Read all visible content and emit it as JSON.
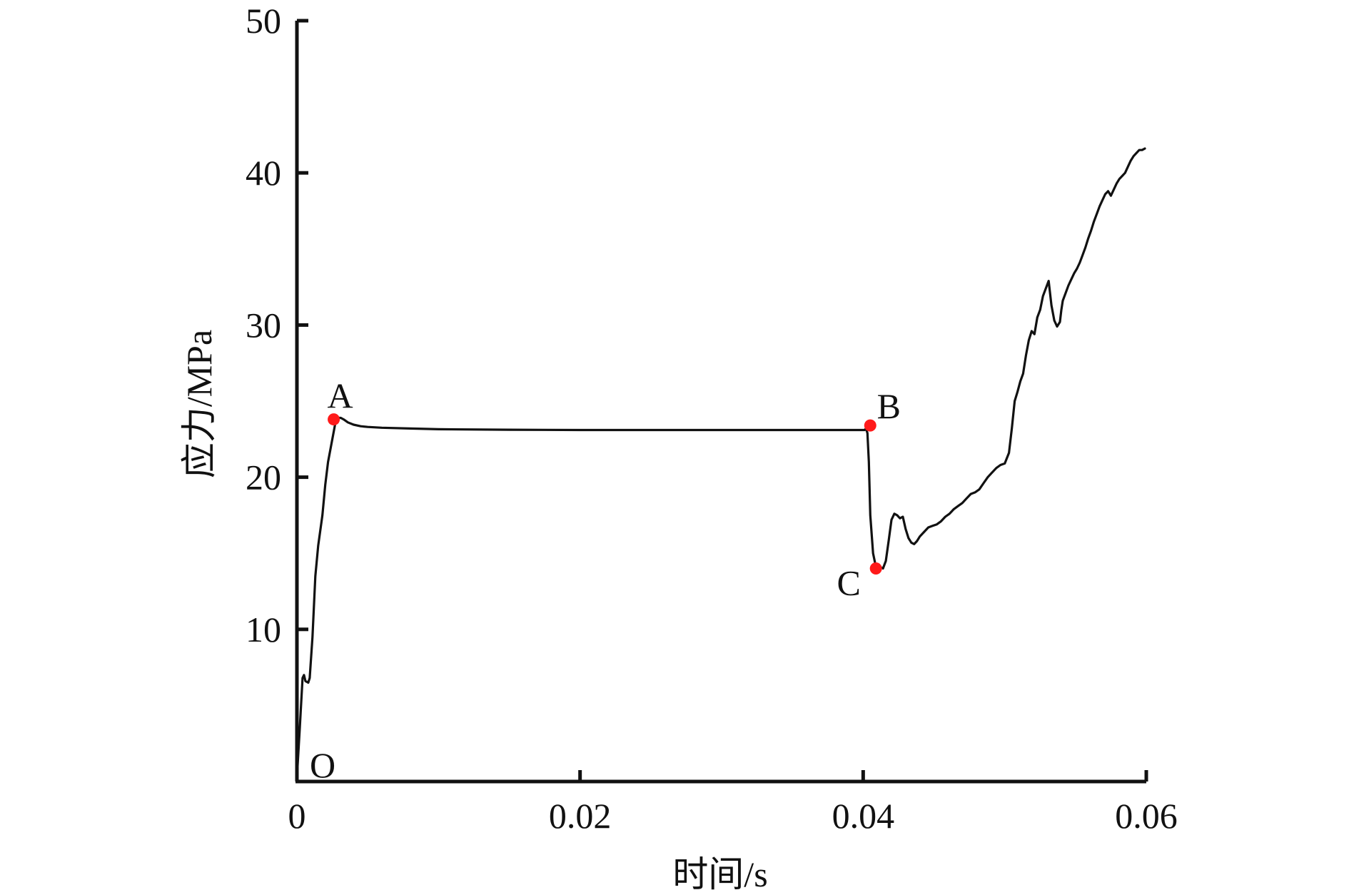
{
  "chart_data": {
    "type": "line",
    "title": "",
    "xlabel": "时间/s",
    "ylabel": "应力/MPa",
    "xlim": [
      0,
      0.06
    ],
    "ylim": [
      0,
      50
    ],
    "x_ticks": [
      0,
      0.02,
      0.04,
      0.06
    ],
    "x_tick_labels": [
      "0",
      "0.02",
      "0.04",
      "0.06"
    ],
    "y_ticks": [
      10,
      20,
      30,
      40,
      50
    ],
    "y_tick_labels": [
      "10",
      "20",
      "30",
      "40",
      "50"
    ],
    "grid": false,
    "legend": "none",
    "line_color": "#111111",
    "marker_color": "#ff1a1a",
    "series": [
      {
        "x": [
          0,
          0.0002,
          0.0004,
          0.0005,
          0.0006,
          0.0008,
          0.0009,
          0.0011,
          0.0013,
          0.0015,
          0.0018,
          0.002,
          0.0022,
          0.0025,
          0.0027,
          0.0028,
          0.0029,
          0.0031,
          0.0033,
          0.0036,
          0.004,
          0.0045,
          0.005,
          0.006,
          0.008,
          0.01,
          0.015,
          0.02,
          0.025,
          0.03,
          0.035,
          0.039,
          0.0401,
          0.0402,
          0.0403,
          0.0404,
          0.0405,
          0.0407,
          0.0409,
          0.041,
          0.0411,
          0.0412,
          0.0414,
          0.0416,
          0.0418,
          0.042,
          0.0422,
          0.0424,
          0.0426,
          0.0428,
          0.043,
          0.0432,
          0.0434,
          0.0436,
          0.0438,
          0.044,
          0.0443,
          0.0446,
          0.0449,
          0.0452,
          0.0455,
          0.0458,
          0.0461,
          0.0464,
          0.0467,
          0.047,
          0.0473,
          0.0476,
          0.0479,
          0.0482,
          0.0485,
          0.0488,
          0.0491,
          0.0494,
          0.0497,
          0.05,
          0.0503,
          0.0505,
          0.0507,
          0.0509,
          0.0511,
          0.0513,
          0.0515,
          0.0517,
          0.0519,
          0.0521,
          0.0523,
          0.0525,
          0.0527,
          0.0529,
          0.0531,
          0.0533,
          0.0535,
          0.0537,
          0.0539,
          0.054,
          0.0541,
          0.0543,
          0.0545,
          0.0547,
          0.0549,
          0.0551,
          0.0553,
          0.0555,
          0.0557,
          0.0559,
          0.0561,
          0.0563,
          0.0565,
          0.0567,
          0.0569,
          0.0571,
          0.0573,
          0.0575,
          0.0577,
          0.0579,
          0.0581,
          0.0583,
          0.0585,
          0.0587,
          0.0589,
          0.0591,
          0.0593,
          0.0595,
          0.0597,
          0.0599
        ],
        "y": [
          0.3,
          3.5,
          6.8,
          7.0,
          6.6,
          6.5,
          6.8,
          9.5,
          13.5,
          15.5,
          17.5,
          19.5,
          21.0,
          22.5,
          23.5,
          23.8,
          23.9,
          23.9,
          23.8,
          23.6,
          23.45,
          23.35,
          23.3,
          23.25,
          23.2,
          23.15,
          23.12,
          23.1,
          23.1,
          23.1,
          23.1,
          23.1,
          23.1,
          23.2,
          22.9,
          21.0,
          17.5,
          15.0,
          14.1,
          14.0,
          14.2,
          14.1,
          14.0,
          14.5,
          15.8,
          17.2,
          17.6,
          17.5,
          17.3,
          17.4,
          16.6,
          16.0,
          15.7,
          15.6,
          15.8,
          16.1,
          16.4,
          16.7,
          16.8,
          16.9,
          17.1,
          17.4,
          17.6,
          17.9,
          18.1,
          18.3,
          18.6,
          18.9,
          19.0,
          19.2,
          19.6,
          20.0,
          20.3,
          20.6,
          20.8,
          20.9,
          21.6,
          23.2,
          25.0,
          25.6,
          26.3,
          26.8,
          28.0,
          29.0,
          29.6,
          29.4,
          30.5,
          31.0,
          31.9,
          32.4,
          32.9,
          31.3,
          30.3,
          29.9,
          30.2,
          31.0,
          31.6,
          32.1,
          32.6,
          33.0,
          33.4,
          33.7,
          34.1,
          34.6,
          35.1,
          35.7,
          36.2,
          36.8,
          37.3,
          37.8,
          38.2,
          38.6,
          38.8,
          38.5,
          38.9,
          39.3,
          39.6,
          39.8,
          40.0,
          40.4,
          40.8,
          41.1,
          41.3,
          41.5,
          41.5,
          41.6
        ]
      }
    ],
    "points": [
      {
        "label": "O",
        "x": 0.0,
        "y": 0.0,
        "marker": false
      },
      {
        "label": "A",
        "x": 0.0026,
        "y": 23.8,
        "marker": true
      },
      {
        "label": "B",
        "x": 0.0405,
        "y": 23.4,
        "marker": true
      },
      {
        "label": "C",
        "x": 0.0409,
        "y": 14.0,
        "marker": true
      }
    ]
  }
}
